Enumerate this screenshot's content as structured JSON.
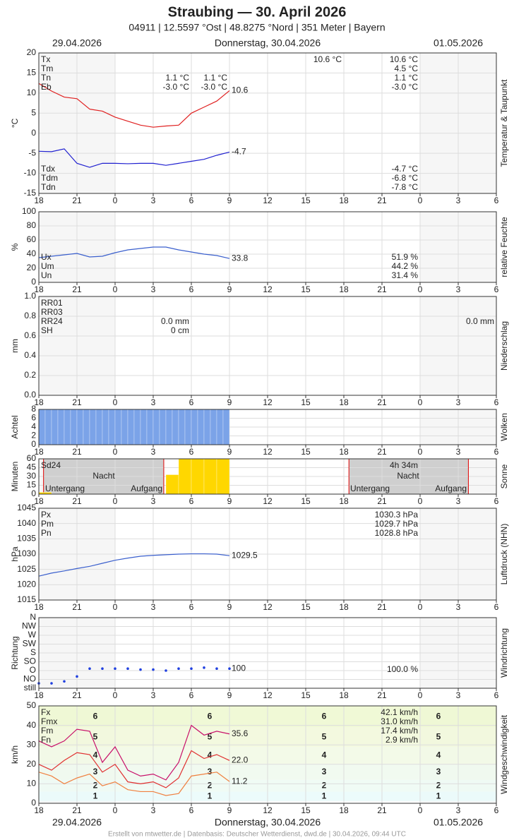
{
  "header": {
    "title": "Straubing  —  30. April 2026",
    "subtitle": "04911  |  12.5597 °Ost  |  48.8275 °Nord  |  351 Meter  |  Bayern",
    "date_left": "29.04.2026",
    "date_center": "Donnerstag, 30.04.2026",
    "date_right": "01.05.2026"
  },
  "footer": "Erstellt von mtwetter.de | Datenbasis: Deutscher Wetterdienst, dwd.de | 30.04.2026, 09:44 UTC",
  "time_axis": {
    "xlim": [
      18,
      54
    ],
    "xticks": [
      18,
      21,
      {
        "value": 24,
        "label": "0"
      },
      {
        "value": 27,
        "label": "3"
      },
      {
        "value": 30,
        "label": "6"
      },
      {
        "value": 33,
        "label": "9"
      },
      {
        "value": 36,
        "label": "12"
      },
      {
        "value": 39,
        "label": "15"
      },
      {
        "value": 42,
        "label": "18"
      },
      {
        "value": 45,
        "label": "21"
      },
      {
        "value": 48,
        "label": "0"
      },
      {
        "value": 51,
        "label": "3"
      },
      {
        "value": 54,
        "label": "6"
      }
    ]
  },
  "chart_data": [
    {
      "type": "line",
      "ylabel": "°C",
      "side_label": "Temperatur & Taupunkt",
      "ylim": [
        -15,
        20
      ],
      "yticks": [
        -15,
        -10,
        -5,
        0,
        5,
        10,
        15,
        20
      ],
      "x": [
        18,
        19,
        20,
        21,
        22,
        23,
        24,
        25,
        26,
        27,
        28,
        29,
        30,
        31,
        32,
        33
      ],
      "series": [
        {
          "color": "#e02020",
          "values": [
            12.4,
            10.5,
            9,
            8.6,
            6,
            5.5,
            4,
            3,
            2,
            1.5,
            1.8,
            2,
            5,
            6.5,
            8,
            10.6
          ],
          "end_label": "10.6"
        },
        {
          "color": "#2020d0",
          "values": [
            -4.5,
            -4.6,
            -3.9,
            -7.5,
            -8.5,
            -7.5,
            -7.5,
            -7.6,
            -7.5,
            -7.5,
            -8,
            -7.5,
            -7,
            -6.5,
            -5.5,
            -4.7
          ],
          "end_label": "-4.7"
        }
      ],
      "notes": [
        [
          "Tx",
          "Tm",
          "Tn",
          "Eb"
        ],
        [
          "1.1 °C",
          "-3.0 °C"
        ],
        [
          "1.1 °C",
          "-3.0 °C"
        ],
        [
          "10.6 °C"
        ],
        [
          "10.6 °C",
          "4.5 °C",
          "1.1 °C",
          "-3.0 °C"
        ],
        [
          "Tdx",
          "Tdm",
          "Tdn"
        ],
        [
          "-4.7 °C",
          "-6.8 °C",
          "-7.8 °C"
        ]
      ]
    },
    {
      "type": "line",
      "ylabel": "%",
      "side_label": "relative Feuchte",
      "ylim": [
        0,
        100
      ],
      "yticks": [
        0,
        20,
        40,
        60,
        80,
        100
      ],
      "x": [
        18,
        19,
        20,
        21,
        22,
        23,
        24,
        25,
        26,
        27,
        28,
        29,
        30,
        31,
        32,
        33
      ],
      "series": [
        {
          "color": "#3a5fcd",
          "values": [
            35,
            37,
            39,
            41,
            36,
            37,
            42,
            46,
            48,
            50,
            50,
            46,
            43,
            40,
            38,
            33.8
          ],
          "end_label": "33.8"
        }
      ],
      "notes": [
        [
          "Ux",
          "Um",
          "Un"
        ],
        [
          "51.9 %",
          "44.2 %",
          "31.4 %"
        ]
      ]
    },
    {
      "type": "bar",
      "ylabel": "mm",
      "side_label": "Niederschlag",
      "ylim": [
        0,
        1
      ],
      "yticks": [
        {
          "value": 0,
          "label": "0.0"
        },
        {
          "value": 0.2,
          "label": "0.2"
        },
        {
          "value": 0.4,
          "label": "0.4"
        },
        {
          "value": 0.6,
          "label": "0.6"
        },
        {
          "value": 0.8,
          "label": "0.8"
        },
        {
          "value": 1,
          "label": "1.0"
        }
      ],
      "notes": [
        [
          "RR01",
          "RR03",
          "RR24",
          "SH"
        ],
        [
          "0.0 mm",
          "0 cm"
        ],
        [
          "0.0 mm"
        ]
      ]
    },
    {
      "type": "bar",
      "ylabel": "Achtel",
      "side_label": "Wolken",
      "ylim": [
        0,
        8
      ],
      "yticks": [
        0,
        2,
        4,
        6,
        8
      ],
      "x": [
        18,
        18.5,
        19,
        19.5,
        20,
        20.5,
        21,
        21.5,
        22,
        22.5,
        23,
        23.5,
        24,
        24.5,
        25,
        25.5,
        26,
        26.5,
        27,
        27.5,
        28,
        28.5,
        29,
        29.5,
        30,
        30.5,
        31,
        31.5,
        32,
        32.5
      ],
      "series": [
        {
          "color": "#7ba3e8",
          "values": [
            8,
            8,
            8,
            8,
            8,
            8,
            8,
            8,
            8,
            8,
            8,
            8,
            8,
            8,
            8,
            8,
            8,
            8,
            8,
            8,
            8,
            8,
            8,
            8,
            8,
            8,
            8,
            8,
            8,
            8
          ]
        }
      ],
      "notes": []
    },
    {
      "type": "bar",
      "ylabel": "Minuten",
      "side_label": "Sonne",
      "ylim": [
        0,
        60
      ],
      "yticks": [
        0,
        15,
        30,
        45,
        60
      ],
      "x": [
        18,
        28,
        29,
        30,
        31,
        32
      ],
      "series": [
        {
          "color": "#ffd700",
          "values": [
            3,
            33,
            60,
            60,
            60,
            60
          ]
        }
      ],
      "sun_events": [
        18.37,
        27.83,
        42.4,
        51.8
      ],
      "notes": [
        [
          "Sd24"
        ],
        [
          "4h 34m"
        ],
        [
          "Nacht"
        ],
        [
          "Nacht"
        ],
        [
          "Untergang"
        ],
        [
          "Aufgang"
        ],
        [
          "Untergang"
        ],
        [
          "Aufgang"
        ]
      ]
    },
    {
      "type": "line",
      "ylabel": "hPa",
      "side_label": "Luftdruck (NHN)",
      "ylim": [
        1015,
        1045
      ],
      "yticks": [
        1015,
        1020,
        1025,
        1030,
        1035,
        1040,
        1045
      ],
      "x": [
        18,
        19,
        20,
        21,
        22,
        23,
        24,
        25,
        26,
        27,
        28,
        29,
        30,
        31,
        32,
        33
      ],
      "series": [
        {
          "color": "#3a5fcd",
          "values": [
            1022.8,
            1023.8,
            1024.5,
            1025.3,
            1026,
            1027,
            1028,
            1028.7,
            1029.3,
            1029.6,
            1029.8,
            1030,
            1030.1,
            1030.1,
            1030,
            1029.5
          ],
          "end_label": "1029.5"
        }
      ],
      "notes": [
        [
          "Px",
          "Pm",
          "Pn"
        ],
        [
          "1030.3 hPa",
          "1029.7 hPa",
          "1028.8 hPa"
        ]
      ]
    },
    {
      "type": "dots",
      "ylabel": "Richtung",
      "side_label": "Windrichtung",
      "ylim": [
        0,
        360
      ],
      "yticks": [
        {
          "value": 0,
          "label": "still"
        },
        {
          "value": 45,
          "label": "NO"
        },
        {
          "value": 90,
          "label": "O"
        },
        {
          "value": 135,
          "label": "SO"
        },
        {
          "value": 180,
          "label": "S"
        },
        {
          "value": 225,
          "label": "SW"
        },
        {
          "value": 270,
          "label": "W"
        },
        {
          "value": 315,
          "label": "NW"
        },
        {
          "value": 360,
          "label": "N"
        }
      ],
      "x": [
        18,
        19,
        20,
        21,
        22,
        23,
        24,
        25,
        26,
        27,
        28,
        29,
        30,
        31,
        32,
        33
      ],
      "series": [
        {
          "color": "#2040e0",
          "values": [
            25,
            25,
            35,
            60,
            100,
            100,
            100,
            100,
            95,
            95,
            90,
            100,
            100,
            105,
            100,
            100
          ],
          "end_label": "100"
        }
      ],
      "notes": [
        [
          "100.0 %"
        ]
      ]
    },
    {
      "type": "line",
      "ylabel": "km/h",
      "side_label": "Windgeschwindigkeit",
      "ylim": [
        0,
        50
      ],
      "yticks": [
        0,
        10,
        20,
        30,
        40,
        50
      ],
      "bands": [
        1,
        6,
        12,
        20,
        29,
        39,
        50
      ],
      "band_labels": [
        "1",
        "2",
        "3",
        "4",
        "5",
        "6"
      ],
      "x": [
        18,
        19,
        20,
        21,
        22,
        23,
        24,
        25,
        26,
        27,
        28,
        29,
        30,
        31,
        32,
        33
      ],
      "series": [
        {
          "color": "#c8106a",
          "values": [
            32,
            29,
            32,
            38,
            37,
            21,
            29,
            17,
            14,
            15,
            12,
            21,
            40,
            35,
            37,
            35.6
          ],
          "end_label": "35.6"
        },
        {
          "color": "#e03030",
          "values": [
            20,
            17,
            22,
            26,
            25,
            16,
            20,
            11,
            10,
            11,
            8,
            13,
            27,
            23,
            25,
            22
          ],
          "end_label": "22.0"
        },
        {
          "color": "#f08040",
          "values": [
            16,
            14,
            10,
            13,
            15,
            9,
            11,
            7,
            6,
            6,
            4,
            5,
            14,
            15,
            16,
            11.2
          ],
          "end_label": "11.2"
        }
      ],
      "notes": [
        [
          "Fx",
          "Fmx",
          "Fm",
          "Fn"
        ],
        [
          "42.1 km/h",
          "31.0 km/h",
          "17.4 km/h",
          "2.9 km/h"
        ]
      ]
    }
  ]
}
